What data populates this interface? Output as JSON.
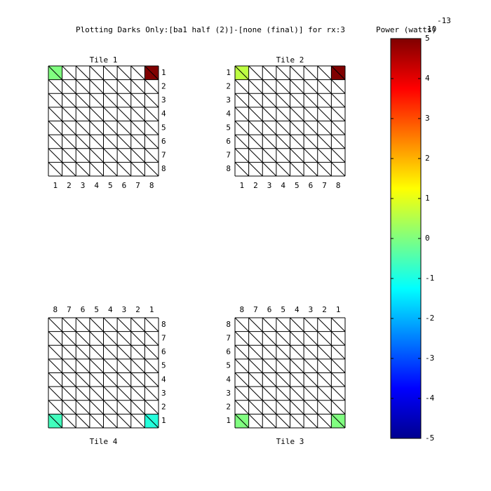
{
  "chart_data": {
    "type": "heatmap",
    "title": "Plotting Darks Only:[ba1 half (2)]-[none (final)] for rx:3",
    "colormap": "jet",
    "colorbar_label": "Power (watts)",
    "colorbar_exponent_base": "10",
    "colorbar_exponent": "-13",
    "colorbar_lim": [
      -5,
      5
    ],
    "colorbar_ticks": [
      5,
      4,
      3,
      2,
      1,
      0,
      -1,
      -2,
      -3,
      -4,
      -5
    ],
    "tiles": [
      {
        "title": "Tile 1",
        "col_labels": [
          "1",
          "2",
          "3",
          "4",
          "5",
          "6",
          "7",
          "8"
        ],
        "row_labels": [
          "1",
          "2",
          "3",
          "4",
          "5",
          "6",
          "7",
          "8"
        ],
        "values": [
          [
            [
              0,
              0
            ],
            null,
            null,
            null,
            null,
            null,
            null,
            [
              5,
              5
            ]
          ],
          [
            null,
            null,
            null,
            null,
            null,
            null,
            null,
            null
          ],
          [
            null,
            null,
            null,
            null,
            null,
            null,
            null,
            null
          ],
          [
            null,
            null,
            null,
            null,
            null,
            null,
            null,
            null
          ],
          [
            null,
            null,
            null,
            null,
            null,
            null,
            null,
            null
          ],
          [
            null,
            null,
            null,
            null,
            null,
            null,
            null,
            null
          ],
          [
            null,
            null,
            null,
            null,
            null,
            null,
            null,
            null
          ],
          [
            null,
            null,
            null,
            null,
            null,
            null,
            null,
            null
          ]
        ]
      },
      {
        "title": "Tile 2",
        "col_labels": [
          "1",
          "2",
          "3",
          "4",
          "5",
          "6",
          "7",
          "8"
        ],
        "row_labels": [
          "1",
          "2",
          "3",
          "4",
          "5",
          "6",
          "7",
          "8"
        ],
        "values": [
          [
            [
              0.6,
              0.6
            ],
            null,
            null,
            null,
            null,
            null,
            null,
            [
              5,
              5
            ]
          ],
          [
            null,
            null,
            null,
            null,
            null,
            null,
            null,
            null
          ],
          [
            null,
            null,
            null,
            null,
            null,
            null,
            null,
            null
          ],
          [
            null,
            null,
            null,
            null,
            null,
            null,
            null,
            null
          ],
          [
            null,
            null,
            null,
            null,
            null,
            null,
            null,
            null
          ],
          [
            null,
            null,
            null,
            null,
            null,
            null,
            null,
            null
          ],
          [
            null,
            null,
            null,
            null,
            null,
            null,
            null,
            null
          ],
          [
            null,
            null,
            null,
            null,
            null,
            null,
            null,
            null
          ]
        ]
      },
      {
        "title": "Tile 4",
        "col_labels": [
          "8",
          "7",
          "6",
          "5",
          "4",
          "3",
          "2",
          "1"
        ],
        "row_labels": [
          "8",
          "7",
          "6",
          "5",
          "4",
          "3",
          "2",
          "1"
        ],
        "values": [
          [
            null,
            null,
            null,
            null,
            null,
            null,
            null,
            null
          ],
          [
            null,
            null,
            null,
            null,
            null,
            null,
            null,
            null
          ],
          [
            null,
            null,
            null,
            null,
            null,
            null,
            null,
            null
          ],
          [
            null,
            null,
            null,
            null,
            null,
            null,
            null,
            null
          ],
          [
            null,
            null,
            null,
            null,
            null,
            null,
            null,
            null
          ],
          [
            null,
            null,
            null,
            null,
            null,
            null,
            null,
            null
          ],
          [
            null,
            null,
            null,
            null,
            null,
            null,
            null,
            null
          ],
          [
            [
              -0.6,
              -0.6
            ],
            null,
            null,
            null,
            null,
            null,
            null,
            [
              -0.9,
              -0.9
            ]
          ]
        ]
      },
      {
        "title": "Tile 3",
        "col_labels": [
          "8",
          "7",
          "6",
          "5",
          "4",
          "3",
          "2",
          "1"
        ],
        "row_labels": [
          "8",
          "7",
          "6",
          "5",
          "4",
          "3",
          "2",
          "1"
        ],
        "values": [
          [
            null,
            null,
            null,
            null,
            null,
            null,
            null,
            null
          ],
          [
            null,
            null,
            null,
            null,
            null,
            null,
            null,
            null
          ],
          [
            null,
            null,
            null,
            null,
            null,
            null,
            null,
            null
          ],
          [
            null,
            null,
            null,
            null,
            null,
            null,
            null,
            null
          ],
          [
            null,
            null,
            null,
            null,
            null,
            null,
            null,
            null
          ],
          [
            null,
            null,
            null,
            null,
            null,
            null,
            null,
            null
          ],
          [
            null,
            null,
            null,
            null,
            null,
            null,
            null,
            null
          ],
          [
            [
              0,
              0
            ],
            null,
            null,
            null,
            null,
            null,
            null,
            [
              0,
              0
            ]
          ]
        ]
      }
    ]
  }
}
